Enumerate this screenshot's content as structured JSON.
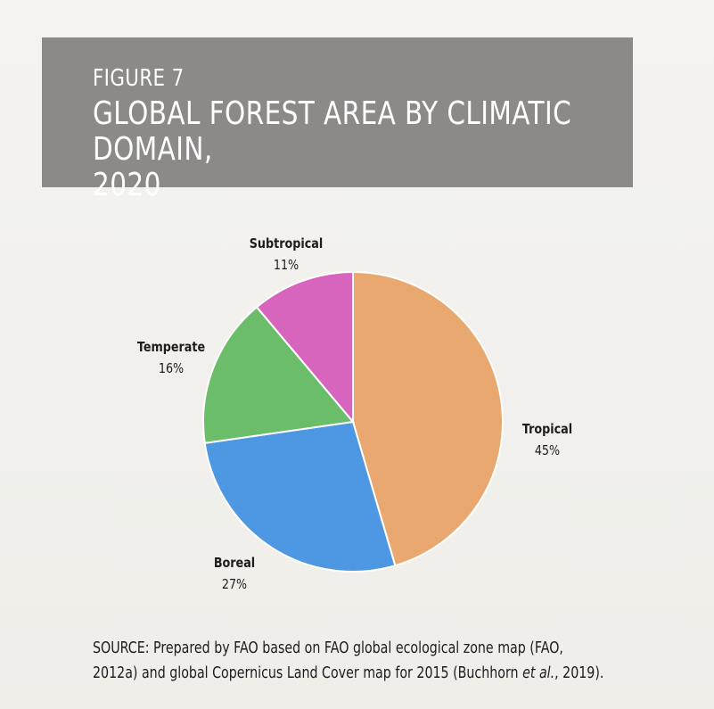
{
  "figure": {
    "label": "FIGURE 7",
    "title_line1": "GLOBAL FOREST AREA BY CLIMATIC DOMAIN,",
    "title_line2": "2020"
  },
  "colors": {
    "banner": "#8b8a89",
    "Tropical": "#e9a86f",
    "Boreal": "#4e97e3",
    "Temperate": "#6cbd6a",
    "Subtropical": "#d865bd"
  },
  "chart_data": {
    "type": "pie",
    "title": "GLOBAL FOREST AREA BY CLIMATIC DOMAIN, 2020",
    "slices": [
      {
        "name": "Tropical",
        "value": 45,
        "label": "45%"
      },
      {
        "name": "Boreal",
        "value": 27,
        "label": "27%"
      },
      {
        "name": "Temperate",
        "value": 16,
        "label": "16%"
      },
      {
        "name": "Subtropical",
        "value": 11,
        "label": "11%"
      }
    ],
    "start": "12 o'clock",
    "direction": "clockwise",
    "legend": "none"
  },
  "source": {
    "prefix": "SOURCE: Prepared by FAO based on FAO global ecological zone map (FAO,",
    "line2_a": "2012a) and global Copernicus Land Cover map for 2015 (Buchhorn ",
    "line2_em": "et al.",
    "line2_b": ", 2019)."
  }
}
